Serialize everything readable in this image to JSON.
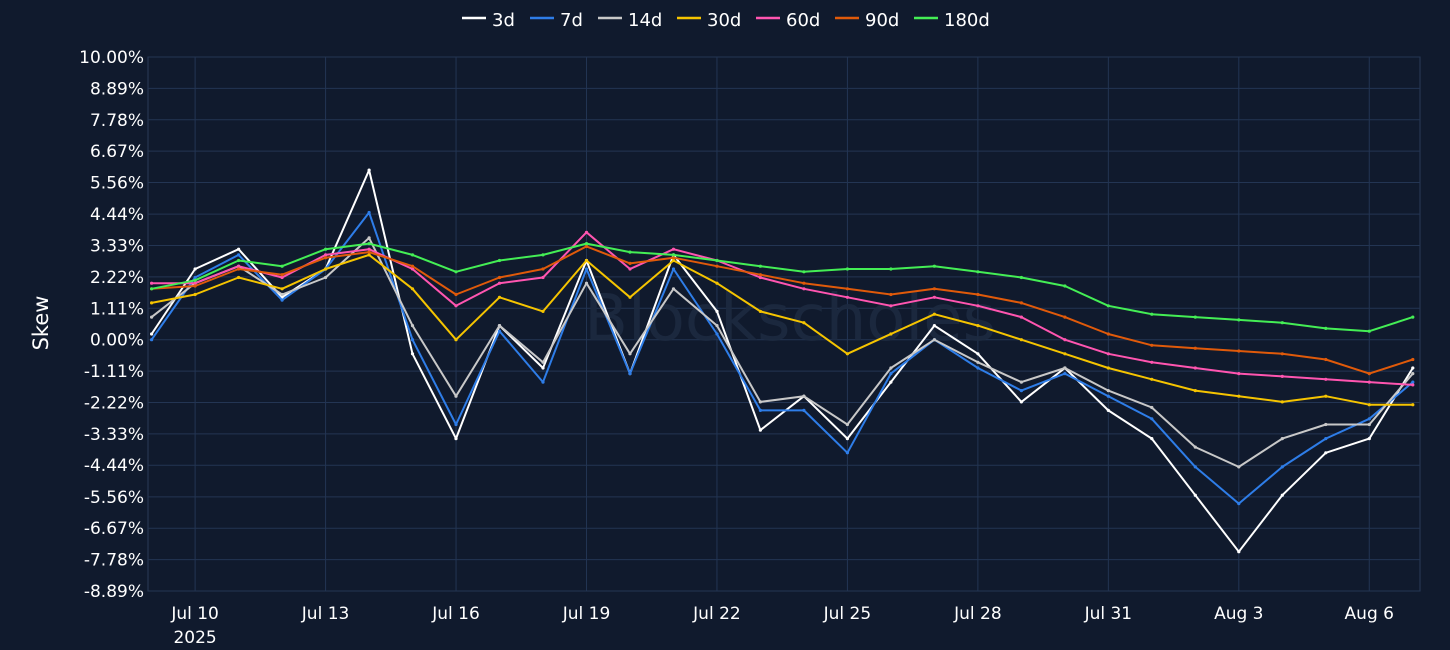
{
  "chart_data": {
    "type": "line",
    "ylabel": "Skew",
    "y_unit": "%",
    "ylim": [
      -8.89,
      10.0
    ],
    "y_ticks": [
      "10.00%",
      "8.89%",
      "7.78%",
      "6.67%",
      "5.56%",
      "4.44%",
      "3.33%",
      "2.22%",
      "1.11%",
      "0.00%",
      "-1.11%",
      "-2.22%",
      "-3.33%",
      "-4.44%",
      "-5.56%",
      "-6.67%",
      "-7.78%",
      "-8.89%"
    ],
    "y_tick_values": [
      10.0,
      8.89,
      7.78,
      6.67,
      5.56,
      4.44,
      3.33,
      2.22,
      1.11,
      0.0,
      -1.11,
      -2.22,
      -3.33,
      -4.44,
      -5.56,
      -6.67,
      -7.78,
      -8.89
    ],
    "xlim": [
      "2025-07-08T22:00",
      "2025-08-07T04:00"
    ],
    "x_ticks": [
      {
        "date": "2025-07-10",
        "label": "Jul 10",
        "sublabel": "2025"
      },
      {
        "date": "2025-07-13",
        "label": "Jul 13",
        "sublabel": ""
      },
      {
        "date": "2025-07-16",
        "label": "Jul 16",
        "sublabel": ""
      },
      {
        "date": "2025-07-19",
        "label": "Jul 19",
        "sublabel": ""
      },
      {
        "date": "2025-07-22",
        "label": "Jul 22",
        "sublabel": ""
      },
      {
        "date": "2025-07-25",
        "label": "Jul 25",
        "sublabel": ""
      },
      {
        "date": "2025-07-28",
        "label": "Jul 28",
        "sublabel": ""
      },
      {
        "date": "2025-07-31",
        "label": "Jul 31",
        "sublabel": ""
      },
      {
        "date": "2025-08-03",
        "label": "Aug 3",
        "sublabel": ""
      },
      {
        "date": "2025-08-06",
        "label": "Aug 6",
        "sublabel": ""
      }
    ],
    "grid": true,
    "legend_position": "top-center",
    "watermark": "Blockscholes",
    "dates": [
      "2025-07-09",
      "2025-07-10",
      "2025-07-11",
      "2025-07-12",
      "2025-07-13",
      "2025-07-14",
      "2025-07-15",
      "2025-07-16",
      "2025-07-17",
      "2025-07-18",
      "2025-07-19",
      "2025-07-20",
      "2025-07-21",
      "2025-07-22",
      "2025-07-23",
      "2025-07-24",
      "2025-07-25",
      "2025-07-26",
      "2025-07-27",
      "2025-07-28",
      "2025-07-29",
      "2025-07-30",
      "2025-07-31",
      "2025-08-01",
      "2025-08-02",
      "2025-08-03",
      "2025-08-04",
      "2025-08-05",
      "2025-08-06",
      "2025-08-07"
    ],
    "series": [
      {
        "name": "3d",
        "color": "#ffffff",
        "values": [
          0.2,
          2.5,
          3.2,
          1.5,
          2.5,
          6.0,
          -0.5,
          -3.5,
          0.5,
          -1.0,
          2.8,
          -1.2,
          3.0,
          1.0,
          -3.2,
          -2.0,
          -3.5,
          -1.5,
          0.5,
          -0.5,
          -2.2,
          -1.0,
          -2.5,
          -3.5,
          -5.5,
          -7.5,
          -5.5,
          -4.0,
          -3.5,
          -1.0
        ]
      },
      {
        "name": "7d",
        "color": "#2e7de8",
        "values": [
          0.0,
          2.2,
          3.0,
          1.4,
          2.5,
          4.5,
          0.0,
          -3.0,
          0.3,
          -1.5,
          2.5,
          -1.2,
          2.5,
          0.2,
          -2.5,
          -2.5,
          -4.0,
          -1.2,
          0.0,
          -1.0,
          -1.8,
          -1.2,
          -2.0,
          -2.8,
          -4.5,
          -5.8,
          -4.5,
          -3.5,
          -2.8,
          -1.5
        ]
      },
      {
        "name": "14d",
        "color": "#c8c8c8",
        "values": [
          0.8,
          2.0,
          2.6,
          1.6,
          2.2,
          3.6,
          0.5,
          -2.0,
          0.5,
          -0.8,
          2.0,
          -0.5,
          1.8,
          0.5,
          -2.2,
          -2.0,
          -3.0,
          -1.0,
          0.0,
          -0.8,
          -1.5,
          -1.0,
          -1.8,
          -2.4,
          -3.8,
          -4.5,
          -3.5,
          -3.0,
          -3.0,
          -1.2
        ]
      },
      {
        "name": "30d",
        "color": "#f5c400",
        "values": [
          1.3,
          1.6,
          2.2,
          1.8,
          2.5,
          3.0,
          1.8,
          0.0,
          1.5,
          1.0,
          2.8,
          1.5,
          2.8,
          2.0,
          1.0,
          0.6,
          -0.5,
          0.2,
          0.9,
          0.5,
          0.0,
          -0.5,
          -1.0,
          -1.4,
          -1.8,
          -2.0,
          -2.2,
          -2.0,
          -2.3,
          -2.3
        ]
      },
      {
        "name": "60d",
        "color": "#ff55b0",
        "values": [
          2.0,
          2.0,
          2.6,
          2.2,
          3.0,
          3.2,
          2.5,
          1.2,
          2.0,
          2.2,
          3.8,
          2.5,
          3.2,
          2.8,
          2.2,
          1.8,
          1.5,
          1.2,
          1.5,
          1.2,
          0.8,
          0.0,
          -0.5,
          -0.8,
          -1.0,
          -1.2,
          -1.3,
          -1.4,
          -1.5,
          -1.6
        ]
      },
      {
        "name": "90d",
        "color": "#e05a0a",
        "values": [
          1.8,
          1.9,
          2.5,
          2.3,
          2.9,
          3.1,
          2.6,
          1.6,
          2.2,
          2.5,
          3.3,
          2.7,
          2.9,
          2.6,
          2.3,
          2.0,
          1.8,
          1.6,
          1.8,
          1.6,
          1.3,
          0.8,
          0.2,
          -0.2,
          -0.3,
          -0.4,
          -0.5,
          -0.7,
          -1.2,
          -0.7
        ]
      },
      {
        "name": "180d",
        "color": "#44ee55",
        "values": [
          1.8,
          2.1,
          2.8,
          2.6,
          3.2,
          3.4,
          3.0,
          2.4,
          2.8,
          3.0,
          3.4,
          3.1,
          3.0,
          2.8,
          2.6,
          2.4,
          2.5,
          2.5,
          2.6,
          2.4,
          2.2,
          1.9,
          1.2,
          0.9,
          0.8,
          0.7,
          0.6,
          0.4,
          0.3,
          0.8
        ]
      }
    ]
  }
}
